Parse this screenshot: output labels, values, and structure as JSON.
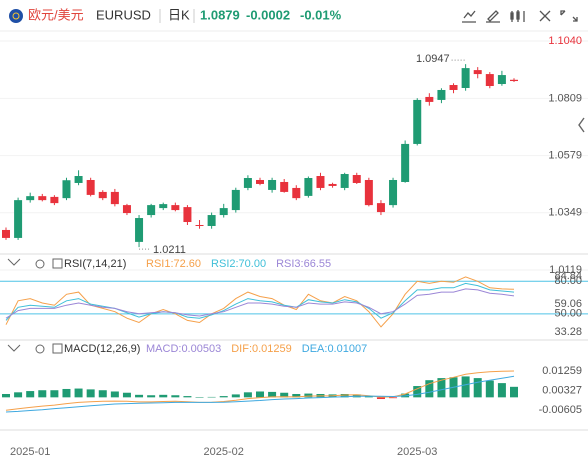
{
  "header": {
    "pair": "欧元/美元",
    "symbol": "EURUSD",
    "period": "日K",
    "price": "1.0879",
    "change": "-0.0002",
    "change_pct": "-0.01%"
  },
  "chart_data": [
    {
      "type": "candlestick",
      "up_color": "#1f9b73",
      "down_color": "#e8323c",
      "ylim": [
        1.0119,
        1.104
      ],
      "yticks": [
        {
          "value": 1.104,
          "label": "1.1040"
        },
        1.0809,
        1.0579,
        1.0349,
        1.0119
      ],
      "annotations": {
        "high": "1.0947",
        "low": "1.0211"
      },
      "ohlc": [
        [
          1.028,
          1.029,
          1.024,
          1.0248
        ],
        [
          1.0248,
          1.041,
          1.024,
          1.04
        ],
        [
          1.04,
          1.043,
          1.039,
          1.0416
        ],
        [
          1.0416,
          1.0425,
          1.0395,
          1.04
        ],
        [
          1.0413,
          1.042,
          1.038,
          1.0388
        ],
        [
          1.0408,
          1.049,
          1.04,
          1.048
        ],
        [
          1.0469,
          1.052,
          1.046,
          1.0497
        ],
        [
          1.0481,
          1.049,
          1.0415,
          1.0421
        ],
        [
          1.0433,
          1.044,
          1.04,
          1.0408
        ],
        [
          1.0433,
          1.0445,
          1.0375,
          1.0384
        ],
        [
          1.038,
          1.0385,
          1.034,
          1.0348
        ],
        [
          1.0232,
          1.034,
          1.0211,
          1.0328
        ],
        [
          1.034,
          1.0385,
          1.033,
          1.038
        ],
        [
          1.0368,
          1.039,
          1.036,
          1.0384
        ],
        [
          1.038,
          1.039,
          1.0355,
          1.036
        ],
        [
          1.0372,
          1.038,
          1.03,
          1.0312
        ],
        [
          1.03,
          1.032,
          1.0285,
          1.0296
        ],
        [
          1.0296,
          1.035,
          1.0285,
          1.034
        ],
        [
          1.034,
          1.0385,
          1.033,
          1.0368
        ],
        [
          1.036,
          1.045,
          1.035,
          1.0441
        ],
        [
          1.0449,
          1.05,
          1.044,
          1.0489
        ],
        [
          1.0481,
          1.049,
          1.046,
          1.0465
        ],
        [
          1.0441,
          1.049,
          1.043,
          1.0481
        ],
        [
          1.0473,
          1.0485,
          1.043,
          1.0433
        ],
        [
          1.0449,
          1.046,
          1.04,
          1.0408
        ],
        [
          1.0417,
          1.0495,
          1.041,
          1.0489
        ],
        [
          1.0497,
          1.051,
          1.044,
          1.0449
        ],
        [
          1.0465,
          1.047,
          1.045,
          1.0457
        ],
        [
          1.0449,
          1.051,
          1.044,
          1.0505
        ],
        [
          1.0501,
          1.051,
          1.0465,
          1.0469
        ],
        [
          1.0481,
          1.049,
          1.0375,
          1.038
        ],
        [
          1.0388,
          1.04,
          1.034,
          1.0352
        ],
        [
          1.038,
          1.049,
          1.037,
          1.0481
        ],
        [
          1.0473,
          1.064,
          1.047,
          1.0626
        ],
        [
          1.0626,
          1.081,
          1.062,
          1.0803
        ],
        [
          1.0815,
          1.083,
          1.078,
          1.0795
        ],
        [
          1.0803,
          1.085,
          1.079,
          1.0843
        ],
        [
          1.0863,
          1.087,
          1.083,
          1.0843
        ],
        [
          1.0851,
          1.0947,
          1.084,
          1.0931
        ],
        [
          1.0923,
          1.0935,
          1.089,
          1.0907
        ],
        [
          1.0907,
          1.0915,
          1.085,
          1.0859
        ],
        [
          1.0867,
          1.092,
          1.086,
          1.0903
        ],
        [
          1.0884,
          1.089,
          1.0875,
          1.0879
        ]
      ]
    },
    {
      "type": "line",
      "title": "RSI(7,14,21)",
      "ylim": [
        33.28,
        84.84
      ],
      "yticks": [
        {
          "value": 80,
          "label": "80.00"
        },
        84.84,
        59.06,
        {
          "value": 50,
          "label": "50.00"
        },
        33.28
      ],
      "levels": [
        80,
        50
      ],
      "level_color": "#4fc3e6",
      "series": [
        {
          "name": "RSI1:72.60",
          "color": "#f5a04a",
          "values": [
            40,
            62,
            64,
            60,
            58,
            68,
            70,
            58,
            55,
            52,
            46,
            42,
            50,
            54,
            50,
            44,
            42,
            50,
            55,
            64,
            70,
            66,
            64,
            58,
            54,
            68,
            62,
            60,
            66,
            62,
            52,
            38,
            50,
            68,
            80,
            78,
            80,
            79,
            84,
            80,
            74,
            73,
            72.6
          ]
        },
        {
          "name": "RSI2:70.00",
          "color": "#3fbfd8",
          "values": [
            44,
            56,
            58,
            57,
            56,
            62,
            64,
            59,
            57,
            55,
            51,
            47,
            50,
            52,
            51,
            47,
            46,
            49,
            53,
            59,
            64,
            62,
            61,
            58,
            56,
            63,
            61,
            60,
            63,
            61,
            55,
            46,
            51,
            62,
            72,
            72,
            74,
            74,
            78,
            76,
            72,
            71,
            70
          ]
        },
        {
          "name": "RSI3:66.55",
          "color": "#9b86d6",
          "values": [
            46,
            53,
            55,
            55,
            55,
            58,
            60,
            58,
            56,
            55,
            52,
            50,
            51,
            52,
            51,
            49,
            48,
            50,
            52,
            56,
            60,
            60,
            59,
            57,
            56,
            60,
            59,
            59,
            61,
            60,
            56,
            50,
            52,
            59,
            67,
            68,
            70,
            70,
            73,
            72,
            69,
            68,
            66.55
          ]
        }
      ]
    },
    {
      "type": "macd",
      "title": "MACD(12,26,9)",
      "ylim": [
        -0.00605,
        0.01259
      ],
      "yticks": [
        0.01259,
        0.00327,
        -0.00605
      ],
      "categories": [
        null,
        null,
        "2025-01",
        null,
        null,
        null,
        null,
        null,
        null,
        null,
        null,
        null,
        null,
        null,
        null,
        null,
        null,
        null,
        "2025-02",
        null,
        null,
        null,
        null,
        null,
        null,
        null,
        null,
        null,
        null,
        null,
        null,
        null,
        null,
        null,
        "2025-03",
        null,
        null,
        null,
        null,
        null,
        null,
        null,
        null
      ],
      "up_color": "#1f9b73",
      "down_color": "#e8323c",
      "series": [
        {
          "name": "MACD:0.00503",
          "color": "#9b86d6",
          "kind": "bar",
          "values": [
            0.0016,
            0.0024,
            0.003,
            0.0034,
            0.0034,
            0.004,
            0.0042,
            0.0038,
            0.0034,
            0.0028,
            0.0022,
            0.0012,
            0.001,
            0.0012,
            0.001,
            0.0006,
            0.0001,
            0.0002,
            0.0006,
            0.0014,
            0.0024,
            0.0028,
            0.0026,
            0.0022,
            0.0016,
            0.0018,
            0.0016,
            0.0014,
            0.0016,
            0.0014,
            0.0004,
            -0.0008,
            -0.0004,
            0.0018,
            0.0054,
            0.0082,
            0.0092,
            0.0096,
            0.01,
            0.0092,
            0.008,
            0.0068,
            0.00503
          ]
        },
        {
          "name": "DIF:0.01259",
          "color": "#f5a04a",
          "kind": "line",
          "values": [
            -0.0062,
            -0.0055,
            -0.0048,
            -0.0042,
            -0.0037,
            -0.003,
            -0.0024,
            -0.0021,
            -0.0019,
            -0.0018,
            -0.0019,
            -0.0022,
            -0.0022,
            -0.002,
            -0.0019,
            -0.0021,
            -0.0024,
            -0.0023,
            -0.002,
            -0.0014,
            -0.0006,
            -0.0001,
            0.0002,
            0.0003,
            0.0002,
            0.0006,
            0.0007,
            0.0008,
            0.0011,
            0.0012,
            0.0008,
            0.0001,
            0.0002,
            0.0016,
            0.0041,
            0.0065,
            0.0082,
            0.0096,
            0.011,
            0.0118,
            0.0122,
            0.0125,
            0.01259
          ]
        },
        {
          "name": "DEA:0.01007",
          "color": "#3fa9e0",
          "kind": "line",
          "values": [
            -0.007,
            -0.0067,
            -0.0063,
            -0.0059,
            -0.0054,
            -0.005,
            -0.0045,
            -0.004,
            -0.0036,
            -0.0032,
            -0.003,
            -0.0028,
            -0.0027,
            -0.0026,
            -0.0024,
            -0.0024,
            -0.0024,
            -0.0024,
            -0.0023,
            -0.0021,
            -0.0018,
            -0.0015,
            -0.0011,
            -0.0008,
            -0.0006,
            -0.0003,
            -0.0001,
            0.0001,
            0.0003,
            0.0005,
            0.0006,
            0.0005,
            0.0004,
            0.0007,
            0.0014,
            0.0024,
            0.0036,
            0.0048,
            0.006,
            0.0072,
            0.0082,
            0.0091,
            0.01007
          ]
        }
      ]
    }
  ]
}
